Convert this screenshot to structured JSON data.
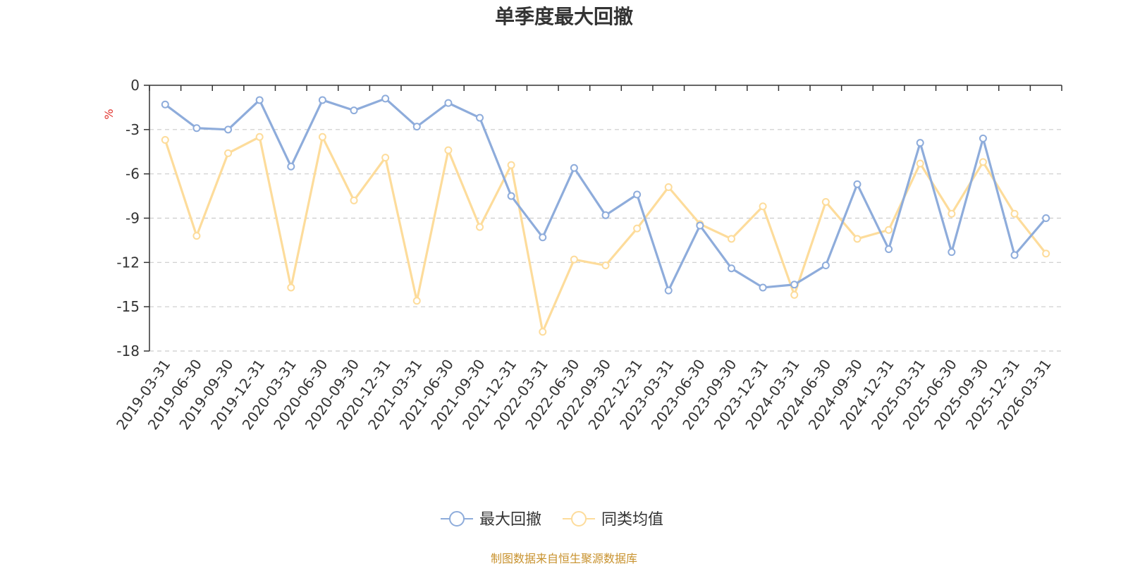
{
  "chart_data": {
    "type": "line",
    "title": "单季度最大回撤",
    "ylabel": "%",
    "xlabel": "",
    "ylim": [
      -18,
      0
    ],
    "yticks": [
      0,
      -3,
      -6,
      -9,
      -12,
      -15,
      -18
    ],
    "grid": true,
    "legend_position": "bottom-center",
    "categories": [
      "2019-03-31",
      "2019-06-30",
      "2019-09-30",
      "2019-12-31",
      "2020-03-31",
      "2020-06-30",
      "2020-09-30",
      "2020-12-31",
      "2021-03-31",
      "2021-06-30",
      "2021-09-30",
      "2021-12-31",
      "2022-03-31",
      "2022-06-30",
      "2022-09-30",
      "2022-12-31",
      "2023-03-31",
      "2023-06-30",
      "2023-09-30",
      "2023-12-31",
      "2024-03-31",
      "2024-06-30",
      "2024-09-30",
      "2024-12-31",
      "2025-03-31",
      "2025-06-30",
      "2025-09-30",
      "2025-12-31",
      "2026-03-31"
    ],
    "series": [
      {
        "name": "最大回撤",
        "color": "#8eacdb",
        "values": [
          -1.3,
          -2.9,
          -3.0,
          -1.0,
          -5.5,
          -1.0,
          -1.7,
          -0.9,
          -2.8,
          -1.2,
          -2.2,
          -7.5,
          -10.3,
          -5.6,
          -8.8,
          -7.4,
          -13.9,
          -9.5,
          -12.4,
          -13.7,
          -13.5,
          -12.2,
          -6.7,
          -11.1,
          -3.9,
          -11.3,
          -3.6,
          -11.5,
          -9.0
        ]
      },
      {
        "name": "同类均值",
        "color": "#fddc9b",
        "values": [
          -3.7,
          -10.2,
          -4.6,
          -3.5,
          -13.7,
          -3.5,
          -7.8,
          -4.9,
          -14.6,
          -4.4,
          -9.6,
          -5.4,
          -16.7,
          -11.8,
          -12.2,
          -9.7,
          -6.9,
          -9.4,
          -10.4,
          -8.2,
          -14.2,
          -7.9,
          -10.4,
          -9.8,
          -5.3,
          -8.7,
          -5.2,
          -8.7,
          -11.4
        ]
      }
    ]
  },
  "source_note": "制图数据来自恒生聚源数据库"
}
